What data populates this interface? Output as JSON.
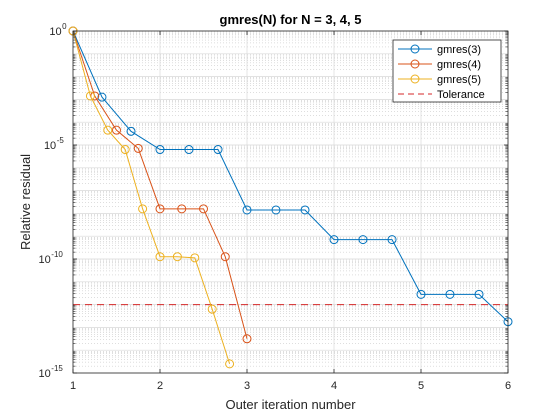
{
  "chart_data": {
    "type": "line",
    "title": "gmres(N) for N = 3, 4, 5",
    "xlabel": "Outer iteration number",
    "ylabel": "Relative residual",
    "xlim": [
      1,
      6
    ],
    "ylim_log10": [
      -15,
      0
    ],
    "yscale": "log",
    "grid": true,
    "minor_grid": true,
    "legend_location": "top-right",
    "xticks": [
      1,
      2,
      3,
      4,
      5,
      6
    ],
    "xtick_labels": [
      "1",
      "2",
      "3",
      "4",
      "5",
      "6"
    ],
    "yticks_log10": [
      0,
      -5,
      -10,
      -15
    ],
    "ytick_labels": [
      {
        "base": "10",
        "exp": "0"
      },
      {
        "base": "10",
        "exp": "-5"
      },
      {
        "base": "10",
        "exp": "-10"
      },
      {
        "base": "10",
        "exp": "-15"
      }
    ],
    "series": [
      {
        "name": "gmres(3)",
        "color": "#0072BD",
        "marker": "circle",
        "x": [
          1,
          1.333,
          1.667,
          2,
          2.333,
          2.667,
          3,
          3.333,
          3.667,
          4,
          4.333,
          4.667,
          5,
          5.333,
          5.667,
          6
        ],
        "log10_y": [
          0,
          -2.9,
          -4.4,
          -5.2,
          -5.2,
          -5.2,
          -7.85,
          -7.85,
          -7.85,
          -9.15,
          -9.15,
          -9.15,
          -11.55,
          -11.55,
          -11.55,
          -12.75
        ]
      },
      {
        "name": "gmres(4)",
        "color": "#D95319",
        "marker": "circle",
        "x": [
          1,
          1.25,
          1.5,
          1.75,
          2,
          2.25,
          2.5,
          2.75,
          3
        ],
        "log10_y": [
          0,
          -2.85,
          -4.35,
          -5.15,
          -7.8,
          -7.8,
          -7.8,
          -9.9,
          -13.5
        ]
      },
      {
        "name": "gmres(5)",
        "color": "#EDB120",
        "marker": "circle",
        "x": [
          1,
          1.2,
          1.4,
          1.6,
          1.8,
          2,
          2.2,
          2.4,
          2.6,
          2.8
        ],
        "log10_y": [
          0,
          -2.85,
          -4.35,
          -5.2,
          -7.8,
          -9.9,
          -9.9,
          -9.95,
          -12.2,
          -14.6
        ]
      },
      {
        "name": "Tolerance",
        "color": "#D62728",
        "style": "dashed",
        "log10_value": -12.0
      }
    ]
  }
}
